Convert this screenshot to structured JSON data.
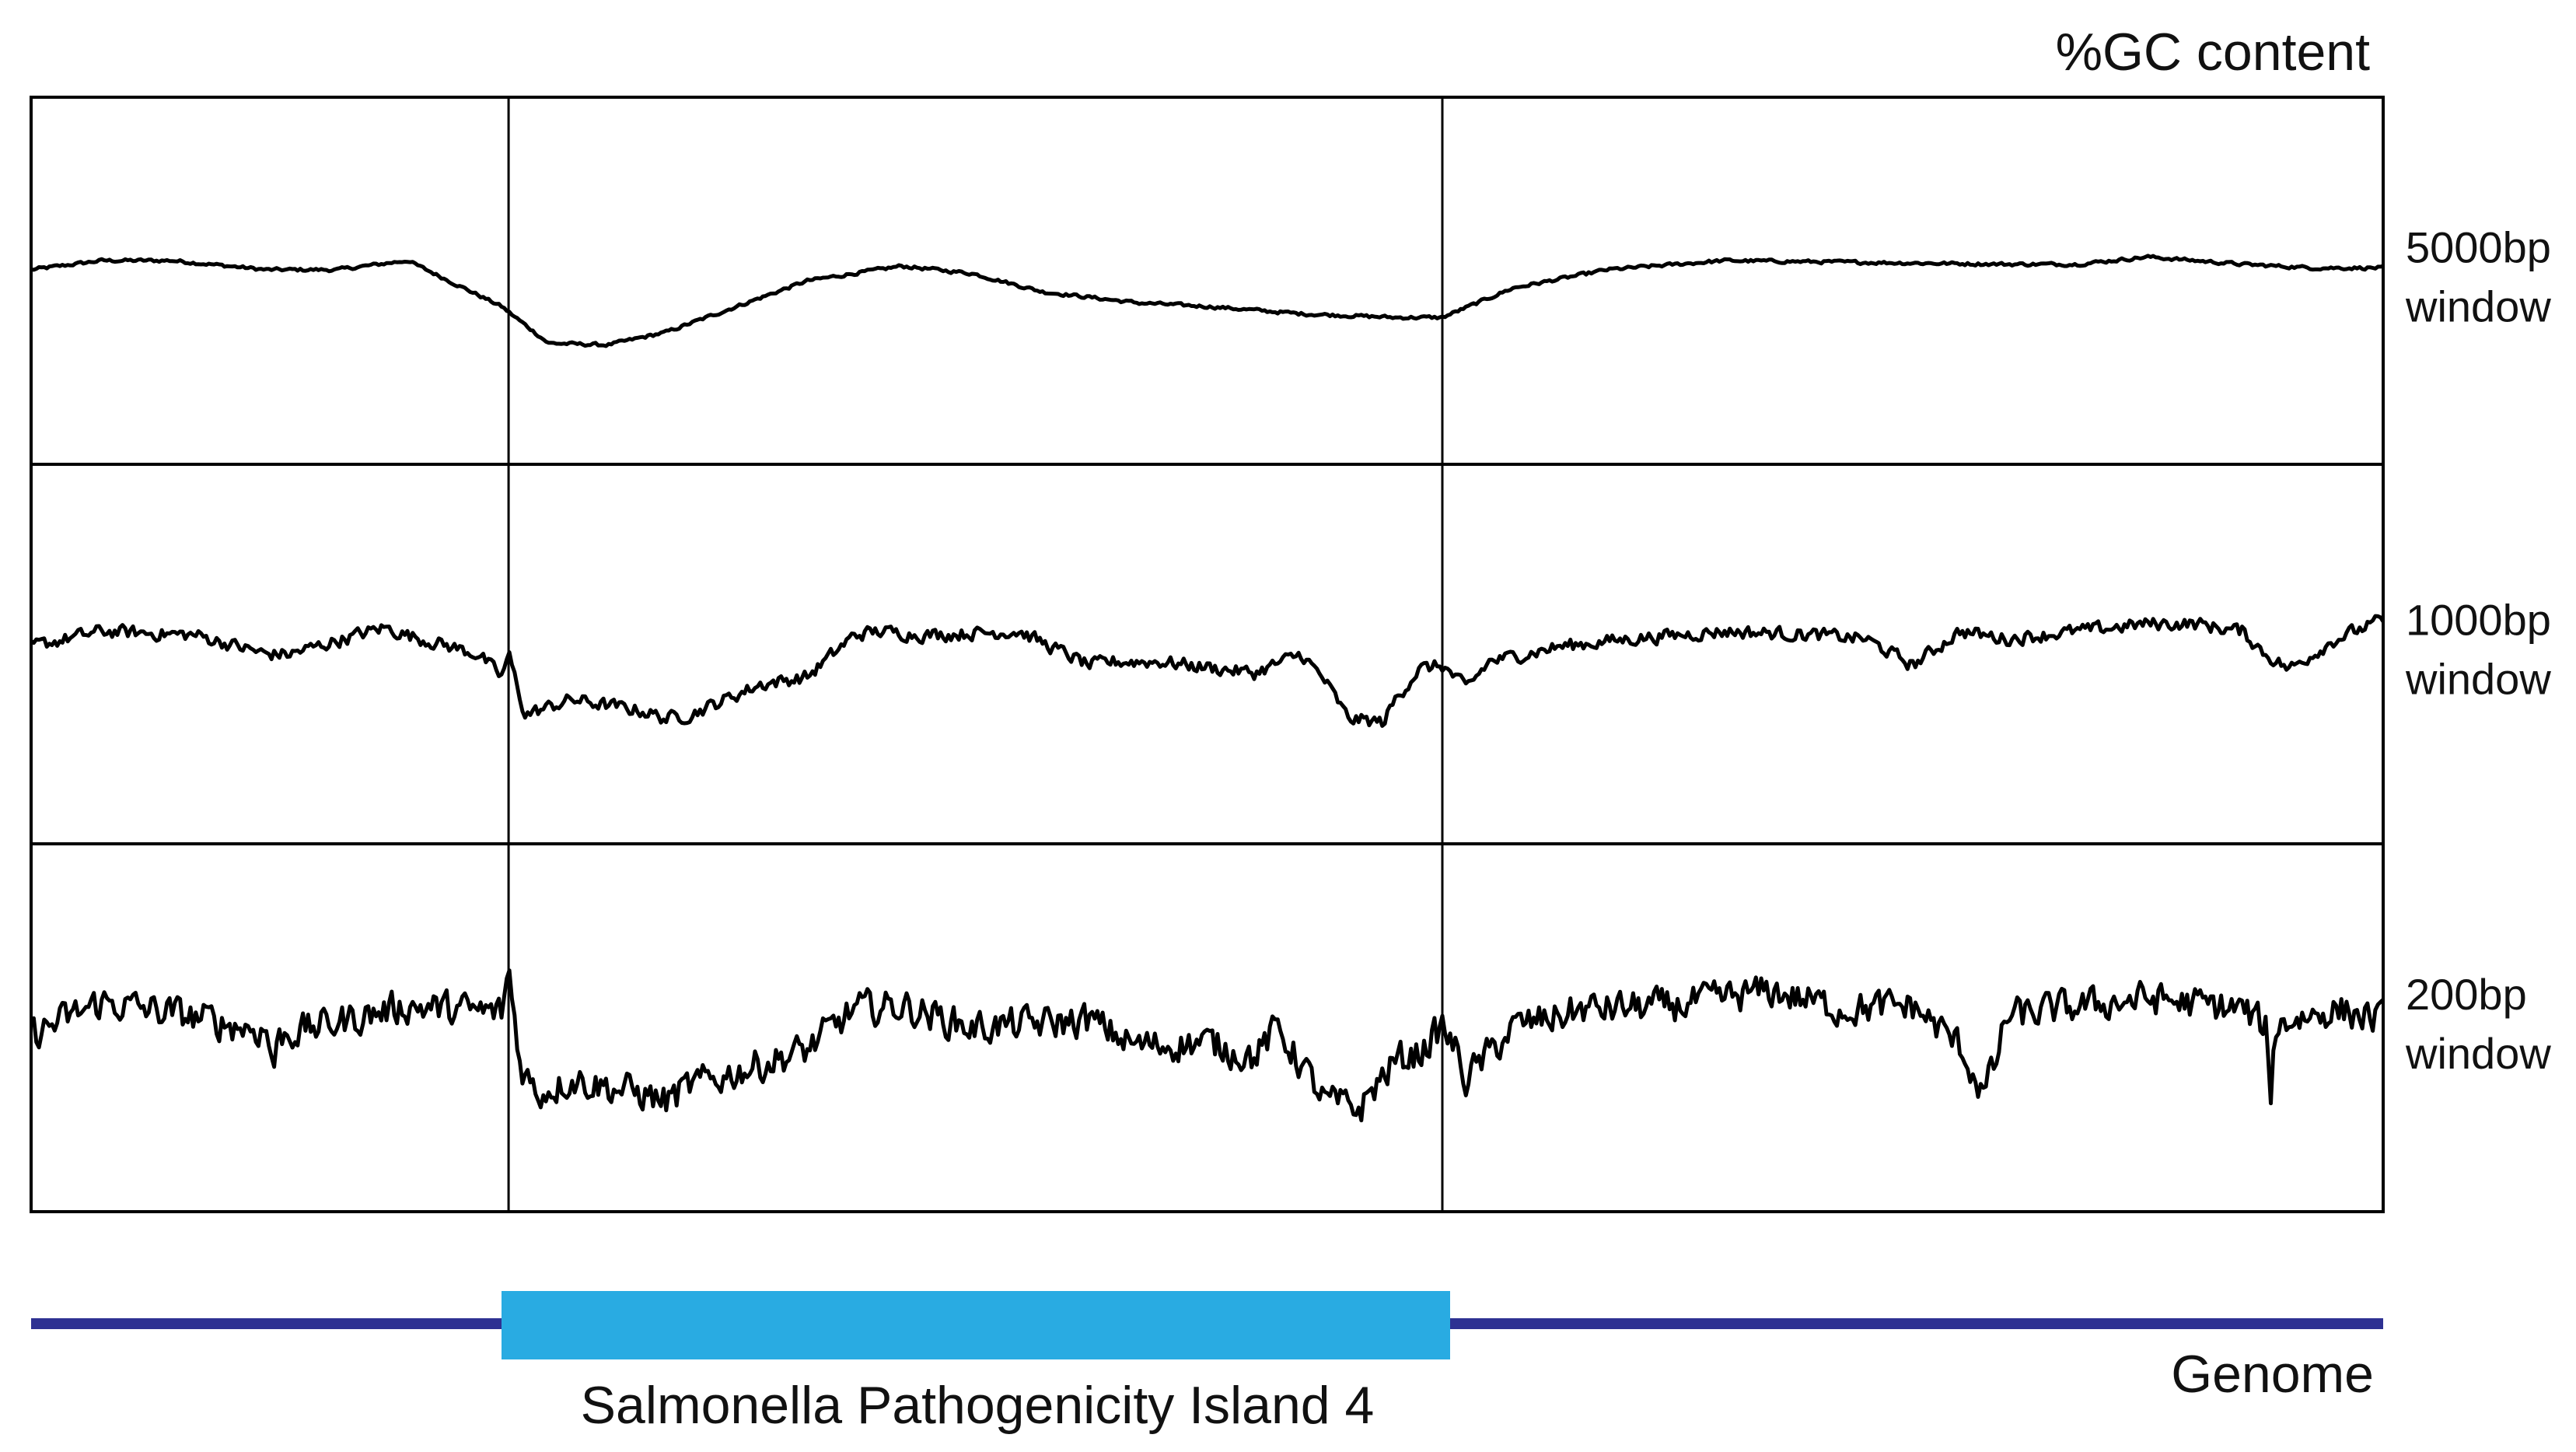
{
  "chart_data": {
    "type": "line",
    "title": "%GC content",
    "x_axis": {
      "label": "Genome",
      "range": [
        0,
        1
      ],
      "ticks_shown": false
    },
    "region": {
      "label": "Salmonella Pathogenicity Island 4",
      "start": 0.2,
      "end": 0.6
    },
    "boundaries": [
      0.203,
      0.6
    ],
    "colors": {
      "trace": "#000000",
      "genome_line": "#2e3192",
      "island_bar": "#29abe2"
    },
    "panels": [
      {
        "name_line1": "5000bp",
        "name_line2": "window",
        "y_range": [
          0,
          1
        ],
        "x": [
          0,
          0.03,
          0.06,
          0.1,
          0.13,
          0.16,
          0.2,
          0.22,
          0.245,
          0.27,
          0.3,
          0.33,
          0.37,
          0.4,
          0.43,
          0.47,
          0.5,
          0.54,
          0.58,
          0.6,
          0.63,
          0.67,
          0.72,
          0.78,
          0.84,
          0.87,
          0.9,
          0.94,
          0.97,
          1
        ],
        "values": [
          0.53,
          0.555,
          0.555,
          0.53,
          0.53,
          0.555,
          0.43,
          0.33,
          0.325,
          0.36,
          0.43,
          0.5,
          0.54,
          0.52,
          0.47,
          0.44,
          0.43,
          0.41,
          0.4,
          0.4,
          0.48,
          0.53,
          0.555,
          0.55,
          0.545,
          0.545,
          0.565,
          0.545,
          0.535,
          0.535
        ],
        "noise": 0.004
      },
      {
        "name_line1": "1000bp",
        "name_line2": "window",
        "y_range": [
          0,
          1
        ],
        "x": [
          0,
          0.03,
          0.07,
          0.1,
          0.11,
          0.15,
          0.16,
          0.19,
          0.2,
          0.203,
          0.21,
          0.23,
          0.26,
          0.27,
          0.28,
          0.31,
          0.33,
          0.35,
          0.36,
          0.38,
          0.42,
          0.45,
          0.46,
          0.48,
          0.52,
          0.54,
          0.55,
          0.56,
          0.575,
          0.58,
          0.59,
          0.6,
          0.61,
          0.62,
          0.65,
          0.68,
          0.72,
          0.76,
          0.78,
          0.8,
          0.82,
          0.83,
          0.84,
          0.87,
          0.9,
          0.92,
          0.94,
          0.95,
          0.96,
          0.98,
          1
        ],
        "values": [
          0.52,
          0.56,
          0.55,
          0.5,
          0.5,
          0.57,
          0.55,
          0.5,
          0.44,
          0.5,
          0.34,
          0.38,
          0.35,
          0.33,
          0.34,
          0.42,
          0.44,
          0.55,
          0.56,
          0.55,
          0.56,
          0.47,
          0.48,
          0.48,
          0.45,
          0.5,
          0.43,
          0.33,
          0.32,
          0.38,
          0.46,
          0.47,
          0.41,
          0.48,
          0.52,
          0.54,
          0.56,
          0.55,
          0.54,
          0.47,
          0.56,
          0.55,
          0.54,
          0.56,
          0.58,
          0.58,
          0.56,
          0.5,
          0.46,
          0.54,
          0.59
        ],
        "noise": 0.016
      },
      {
        "name_line1": "200bp",
        "name_line2": "window",
        "y_range": [
          0,
          1
        ],
        "x": [
          0,
          0.03,
          0.06,
          0.1,
          0.103,
          0.106,
          0.12,
          0.16,
          0.2,
          0.203,
          0.208,
          0.215,
          0.23,
          0.26,
          0.27,
          0.28,
          0.31,
          0.33,
          0.35,
          0.37,
          0.4,
          0.45,
          0.47,
          0.5,
          0.52,
          0.53,
          0.54,
          0.55,
          0.565,
          0.57,
          0.58,
          0.59,
          0.6,
          0.605,
          0.61,
          0.63,
          0.66,
          0.7,
          0.74,
          0.77,
          0.8,
          0.82,
          0.83,
          0.835,
          0.84,
          0.86,
          0.9,
          0.94,
          0.95,
          0.952,
          0.954,
          0.96,
          0.98,
          1
        ],
        "values": [
          0.48,
          0.57,
          0.54,
          0.49,
          0.4,
          0.48,
          0.5,
          0.56,
          0.54,
          0.66,
          0.4,
          0.32,
          0.36,
          0.32,
          0.3,
          0.34,
          0.4,
          0.44,
          0.55,
          0.56,
          0.5,
          0.52,
          0.45,
          0.46,
          0.42,
          0.5,
          0.4,
          0.3,
          0.28,
          0.33,
          0.41,
          0.43,
          0.5,
          0.45,
          0.36,
          0.5,
          0.55,
          0.56,
          0.6,
          0.55,
          0.56,
          0.45,
          0.32,
          0.4,
          0.53,
          0.55,
          0.58,
          0.55,
          0.5,
          0.3,
          0.5,
          0.52,
          0.55,
          0.52
        ],
        "noise": 0.042
      }
    ]
  }
}
